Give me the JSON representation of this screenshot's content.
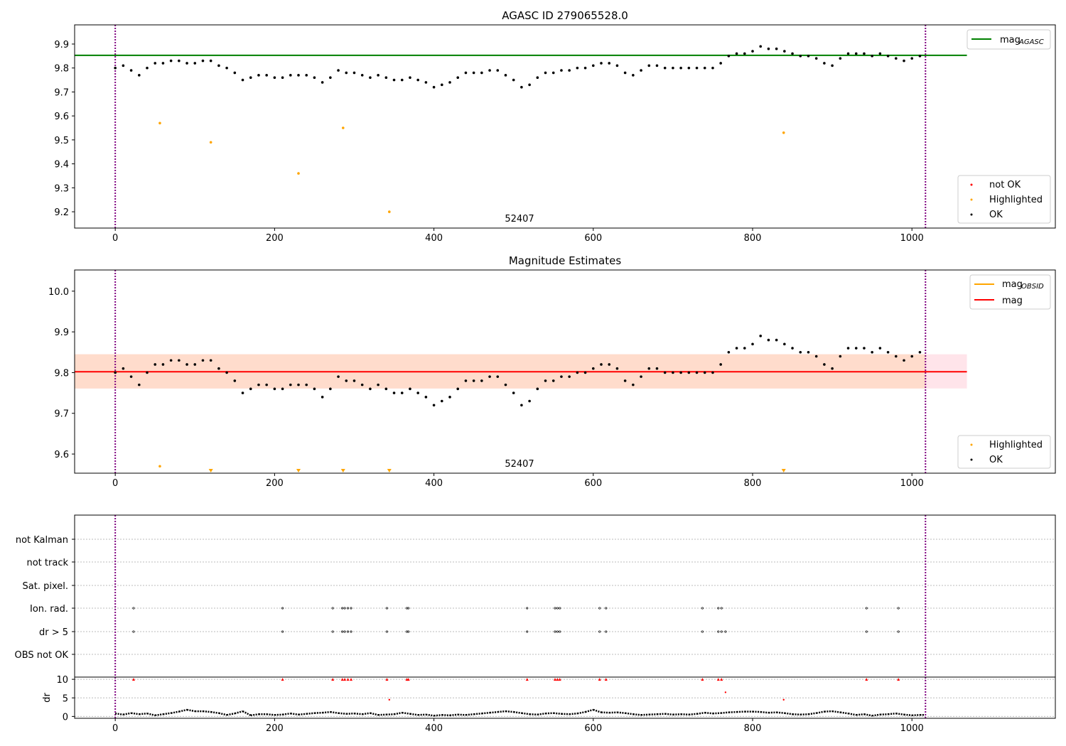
{
  "chart_data": [
    {
      "type": "scatter",
      "title": "AGASC ID 279065528.0",
      "xlim": [
        -51,
        1180
      ],
      "ylim": [
        9.132,
        9.98
      ],
      "xticks": [
        0,
        200,
        400,
        600,
        800,
        1000
      ],
      "yticks": [
        9.2,
        9.3,
        9.4,
        9.5,
        9.6,
        9.7,
        9.8,
        9.9
      ],
      "mag_agasc": 9.853,
      "mag_agasc_label": "mag",
      "mag_agasc_sub": "AGASC",
      "legend": [
        "not OK",
        "Highlighted",
        "OK"
      ],
      "annotation": "52407",
      "annotation_x": 508,
      "vlines": [
        0,
        1017
      ]
    },
    {
      "type": "scatter",
      "title": "Magnitude Estimates",
      "xlim": [
        -51,
        1180
      ],
      "ylim": [
        9.553,
        10.052
      ],
      "xticks": [
        0,
        200,
        400,
        600,
        800,
        1000
      ],
      "yticks": [
        9.6,
        9.7,
        9.8,
        9.9,
        10.0
      ],
      "mag_obsid_label": "mag",
      "mag_obsid_sub": "OBSID",
      "mag": 9.802,
      "mag_label": "mag",
      "band": [
        9.761,
        9.845
      ],
      "legend": [
        "Highlighted",
        "OK"
      ],
      "annotation": "52407",
      "annotation_x": 508
    },
    {
      "type": "scatter",
      "categories": [
        "not Kalman",
        "not track",
        "Sat. pixel.",
        "Ion. rad.",
        "dr > 5",
        "OBS not OK"
      ],
      "flag_x": [
        23,
        210,
        273,
        285,
        288,
        292,
        296,
        341,
        366,
        368,
        517,
        552,
        555,
        558,
        608,
        616,
        737,
        757,
        761,
        943,
        983
      ],
      "dr5_extra_x": [
        766
      ],
      "dr_label": "dr",
      "dr_yticks": [
        0,
        5,
        10
      ],
      "dr_ylim": [
        -0.5,
        10.6
      ],
      "dr_high": [
        [
          344,
          4.5
        ],
        [
          766,
          6.5
        ],
        [
          839,
          4.5
        ]
      ]
    }
  ],
  "series": {
    "x_step": 10,
    "mag": [
      9.8,
      9.81,
      9.79,
      9.77,
      9.8,
      9.82,
      9.82,
      9.83,
      9.83,
      9.82,
      9.82,
      9.83,
      9.83,
      9.81,
      9.8,
      9.78,
      9.75,
      9.76,
      9.77,
      9.77,
      9.76,
      9.76,
      9.77,
      9.77,
      9.77,
      9.76,
      9.74,
      9.76,
      9.79,
      9.78,
      9.78,
      9.77,
      9.76,
      9.77,
      9.76,
      9.75,
      9.75,
      9.76,
      9.75,
      9.74,
      9.72,
      9.73,
      9.74,
      9.76,
      9.78,
      9.78,
      9.78,
      9.79,
      9.79,
      9.77,
      9.75,
      9.72,
      9.73,
      9.76,
      9.78,
      9.78,
      9.79,
      9.79,
      9.8,
      9.8,
      9.81,
      9.82,
      9.82,
      9.81,
      9.78,
      9.77,
      9.79,
      9.81,
      9.81,
      9.8,
      9.8,
      9.8,
      9.8,
      9.8,
      9.8,
      9.8,
      9.82,
      9.85,
      9.86,
      9.86,
      9.87,
      9.89,
      9.88,
      9.88,
      9.87,
      9.86,
      9.85,
      9.85,
      9.84,
      9.82,
      9.81,
      9.84,
      9.86,
      9.86,
      9.86,
      9.85,
      9.86,
      9.85,
      9.84,
      9.83,
      9.84,
      9.85
    ],
    "dr": [
      0.8,
      0.5,
      0.9,
      0.6,
      0.8,
      0.3,
      0.6,
      0.9,
      1.3,
      1.8,
      1.4,
      1.4,
      1.2,
      0.9,
      0.4,
      0.8,
      1.4,
      0.3,
      0.6,
      0.6,
      0.4,
      0.5,
      0.8,
      0.5,
      0.7,
      0.9,
      1.0,
      1.2,
      0.9,
      0.7,
      0.8,
      0.6,
      0.9,
      0.4,
      0.5,
      0.6,
      1.0,
      0.7,
      0.4,
      0.5,
      0.2,
      0.4,
      0.3,
      0.5,
      0.4,
      0.6,
      0.8,
      1.0,
      1.2,
      1.4,
      1.2,
      0.9,
      0.6,
      0.5,
      0.8,
      0.9,
      0.7,
      0.6,
      0.8,
      1.2,
      1.8,
      1.1,
      1.0,
      1.1,
      0.9,
      0.6,
      0.4,
      0.5,
      0.6,
      0.7,
      0.5,
      0.6,
      0.5,
      0.7,
      1.0,
      0.8,
      0.9,
      1.1,
      1.2,
      1.3,
      1.3,
      1.2,
      1.0,
      1.1,
      0.9,
      0.6,
      0.5,
      0.6,
      0.9,
      1.3,
      1.4,
      1.1,
      0.8,
      0.4,
      0.6,
      0.2,
      0.5,
      0.6,
      0.8,
      0.5,
      0.3,
      0.4
    ],
    "highlighted": [
      [
        56,
        9.57
      ],
      [
        120,
        9.49
      ],
      [
        230,
        9.36
      ],
      [
        286,
        9.55
      ],
      [
        344,
        9.2
      ],
      [
        839,
        9.53
      ]
    ]
  },
  "colors": {
    "agasc": "#008000",
    "obsid": "#ffa500",
    "mag": "#ff0000",
    "highlight": "#ffa500",
    "notok": "#ff0000",
    "vline": "#800080"
  }
}
